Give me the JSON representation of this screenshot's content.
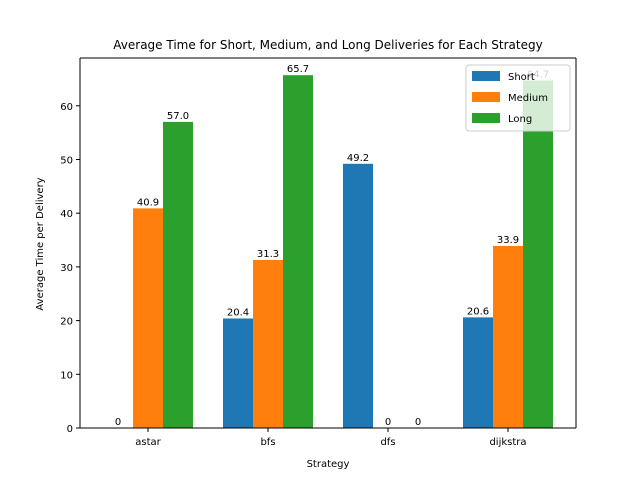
{
  "chart_data": {
    "type": "bar",
    "title": "Average Time for Short, Medium, and Long Deliveries for Each Strategy",
    "xlabel": "Strategy",
    "ylabel": "Average Time per Delivery",
    "categories": [
      "astar",
      "bfs",
      "dfs",
      "dijkstra"
    ],
    "ylim": [
      0,
      68.9
    ],
    "yticks": [
      0,
      10,
      20,
      30,
      40,
      50,
      60
    ],
    "series": [
      {
        "name": "Short",
        "color": "#1f77b4",
        "values": [
          0,
          20.4,
          49.2,
          20.6
        ],
        "labels": [
          "0",
          "20.4",
          "49.2",
          "20.6"
        ]
      },
      {
        "name": "Medium",
        "color": "#ff7f0e",
        "values": [
          40.9,
          31.3,
          0,
          33.9
        ],
        "labels": [
          "40.9",
          "31.3",
          "0",
          "33.9"
        ]
      },
      {
        "name": "Long",
        "color": "#2ca02c",
        "values": [
          57.0,
          65.7,
          0,
          64.7
        ],
        "labels": [
          "57.0",
          "65.7",
          "0",
          "64.7"
        ]
      }
    ],
    "legend": "top-right",
    "grid": false
  }
}
